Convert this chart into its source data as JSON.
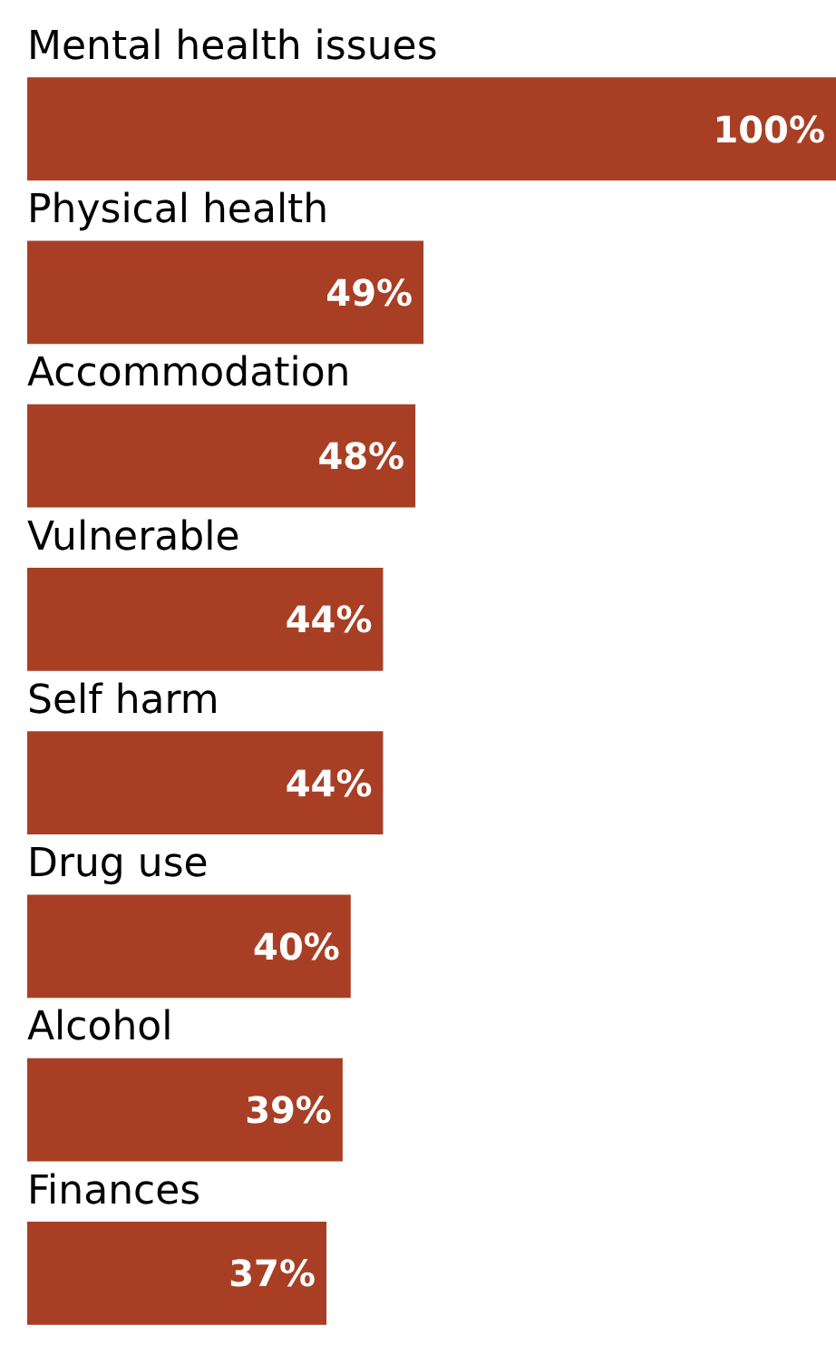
{
  "chart_data": {
    "type": "bar",
    "orientation": "horizontal",
    "categories": [
      "Mental health issues",
      "Physical health",
      "Accommodation",
      "Vulnerable",
      "Self harm",
      "Drug use",
      "Alcohol",
      "Finances"
    ],
    "values": [
      100,
      49,
      48,
      44,
      44,
      40,
      39,
      37
    ],
    "value_labels": [
      "100%",
      "49%",
      "48%",
      "44%",
      "44%",
      "40%",
      "39%",
      "37%"
    ],
    "color": "#a83f25",
    "xlim": [
      0,
      100
    ],
    "tick_labels": false
  }
}
